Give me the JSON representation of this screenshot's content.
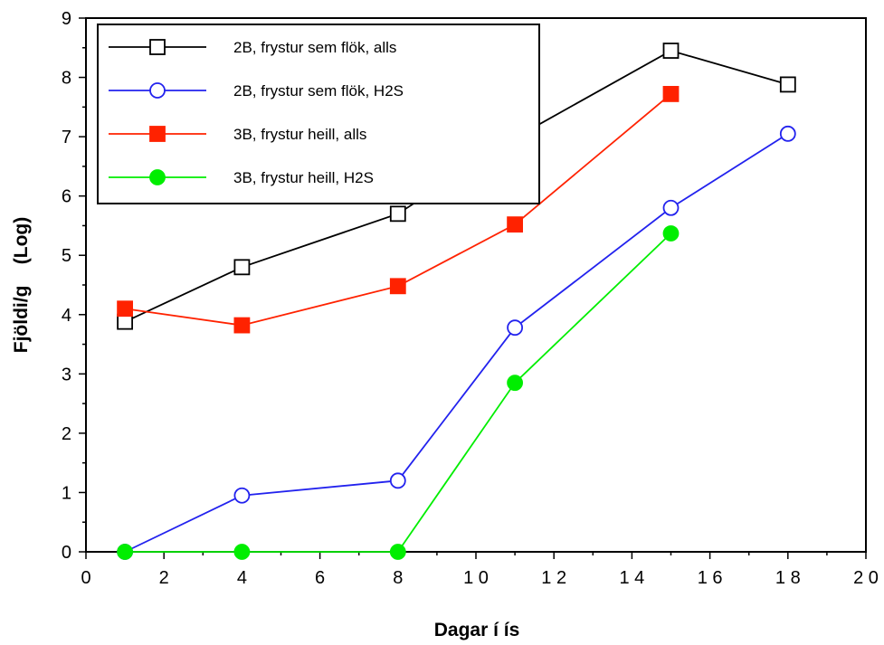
{
  "chart_data": {
    "type": "line",
    "title": "",
    "xlabel": "Dagar  í  ís",
    "ylabel": "Fjöldi/g    (Log)",
    "xlim": [
      0,
      20
    ],
    "ylim": [
      0,
      9
    ],
    "x_ticks": [
      0,
      2,
      4,
      6,
      8,
      10,
      12,
      14,
      16,
      18,
      20
    ],
    "x_tick_labels": [
      "0",
      "2",
      "4",
      "6",
      "8",
      "1 0",
      "1 2",
      "1 4",
      "1 6",
      "1 8",
      "2 0"
    ],
    "y_ticks": [
      0,
      1,
      2,
      3,
      4,
      5,
      6,
      7,
      8,
      9
    ],
    "y_tick_labels": [
      "0",
      "1",
      "2",
      "3",
      "4",
      "5",
      "6",
      "7",
      "8",
      "9"
    ],
    "grid": false,
    "legend_position": "top-left",
    "series": [
      {
        "name": "2B, frystur sem flök, alls",
        "color": "#000000",
        "marker": "square-open",
        "x": [
          1,
          4,
          8,
          11,
          15,
          18
        ],
        "y": [
          3.88,
          4.8,
          5.7,
          6.98,
          8.45,
          7.88
        ]
      },
      {
        "name": "2B, frystur sem flök, H2S",
        "color": "#2222ee",
        "marker": "circle-open",
        "x": [
          1,
          4,
          8,
          11,
          15,
          18
        ],
        "y": [
          0,
          0.95,
          1.2,
          3.78,
          5.8,
          7.05
        ]
      },
      {
        "name": "3B, frystur heill, alls",
        "color": "#ff2200",
        "marker": "square-filled",
        "x": [
          1,
          4,
          8,
          11,
          15
        ],
        "y": [
          4.1,
          3.82,
          4.48,
          5.52,
          7.72
        ]
      },
      {
        "name": "3B, frystur heill, H2S",
        "color": "#00ee00",
        "marker": "circle-filled",
        "x": [
          1,
          4,
          8,
          11,
          15
        ],
        "y": [
          0,
          0,
          0,
          2.85,
          5.37
        ]
      }
    ]
  }
}
